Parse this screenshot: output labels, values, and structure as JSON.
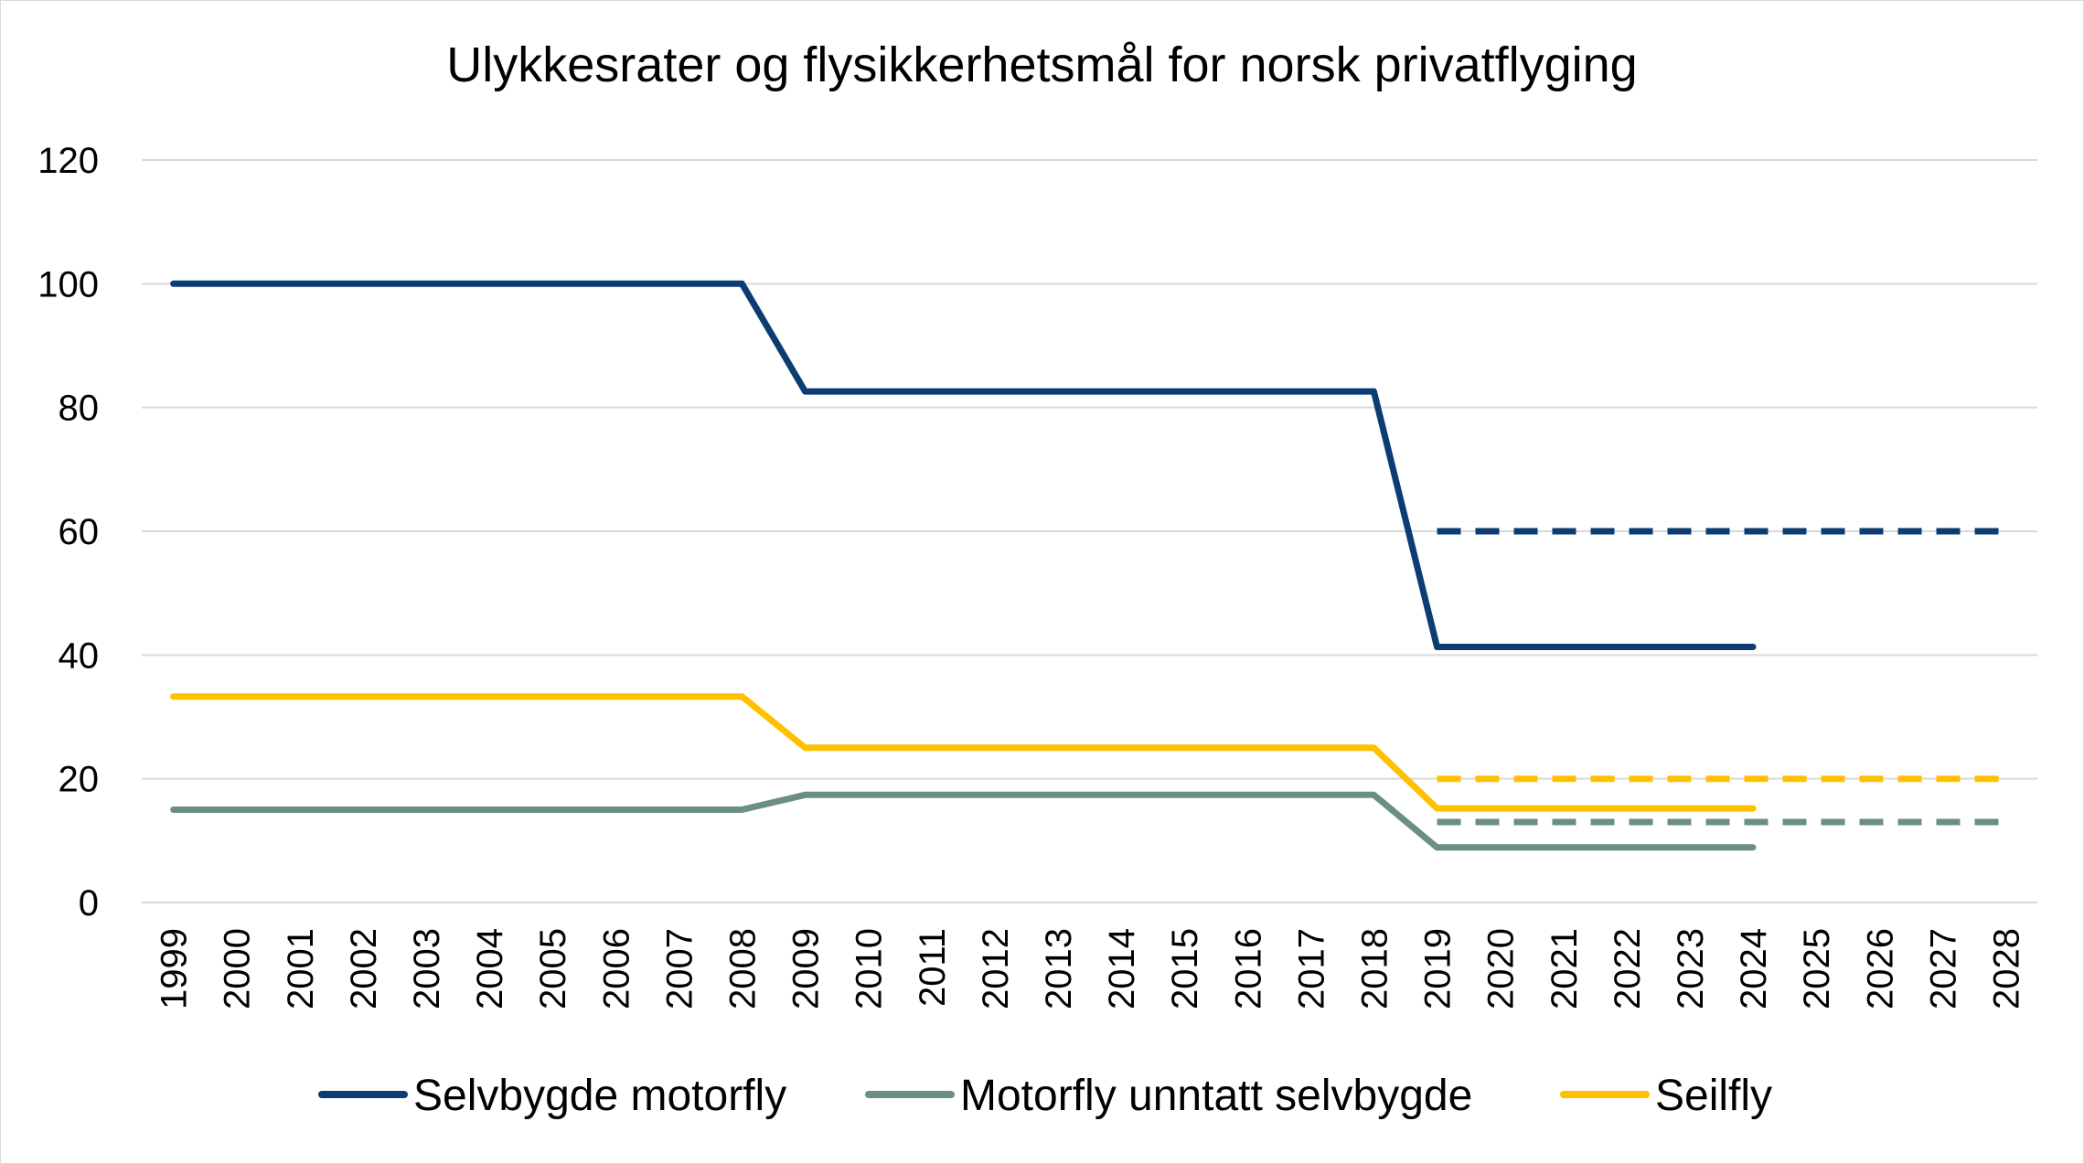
{
  "chart_data": {
    "type": "line",
    "title": "Ulykkesrater og flysikkerhetsmål for norsk privatflyging",
    "xlabel": "",
    "ylabel": "",
    "ylim": [
      0,
      120
    ],
    "yticks": [
      "0",
      "20",
      "40",
      "60",
      "80",
      "100",
      "120"
    ],
    "categories": [
      "1999",
      "2000",
      "2001",
      "2002",
      "2003",
      "2004",
      "2005",
      "2006",
      "2007",
      "2008",
      "2009",
      "2010",
      "2011",
      "2012",
      "2013",
      "2014",
      "2015",
      "2016",
      "2017",
      "2018",
      "2019",
      "2020",
      "2021",
      "2022",
      "2023",
      "2024",
      "2025",
      "2026",
      "2027",
      "2028"
    ],
    "grid": true,
    "legend_position": "bottom",
    "series": [
      {
        "name": "Selvbygde motorfly",
        "color": "#0b3d73",
        "style": "solid",
        "values": [
          100,
          100,
          100,
          100,
          100,
          100,
          100,
          100,
          100,
          100,
          82.6,
          82.6,
          82.6,
          82.6,
          82.6,
          82.6,
          82.6,
          82.6,
          82.6,
          82.6,
          41.3,
          41.3,
          41.3,
          41.3,
          41.3,
          41.3,
          null,
          null,
          null,
          null
        ]
      },
      {
        "name": "Motorfly unntatt selvbygde",
        "color": "#6b8f80",
        "style": "solid",
        "values": [
          15,
          15,
          15,
          15,
          15,
          15,
          15,
          15,
          15,
          15,
          17.4,
          17.4,
          17.4,
          17.4,
          17.4,
          17.4,
          17.4,
          17.4,
          17.4,
          17.4,
          8.9,
          8.9,
          8.9,
          8.9,
          8.9,
          8.9,
          null,
          null,
          null,
          null
        ]
      },
      {
        "name": "Seilfly",
        "color": "#ffc000",
        "style": "solid",
        "values": [
          33.3,
          33.3,
          33.3,
          33.3,
          33.3,
          33.3,
          33.3,
          33.3,
          33.3,
          33.3,
          25,
          25,
          25,
          25,
          25,
          25,
          25,
          25,
          25,
          25,
          15.2,
          15.2,
          15.2,
          15.2,
          15.2,
          15.2,
          null,
          null,
          null,
          null
        ]
      },
      {
        "color": "#0b3d73",
        "style": "dashed",
        "values": [
          null,
          null,
          null,
          null,
          null,
          null,
          null,
          null,
          null,
          null,
          null,
          null,
          null,
          null,
          null,
          null,
          null,
          null,
          null,
          null,
          60,
          60,
          60,
          60,
          60,
          60,
          60,
          60,
          60,
          60
        ]
      },
      {
        "color": "#ffc000",
        "style": "dashed",
        "values": [
          null,
          null,
          null,
          null,
          null,
          null,
          null,
          null,
          null,
          null,
          null,
          null,
          null,
          null,
          null,
          null,
          null,
          null,
          null,
          null,
          20,
          20,
          20,
          20,
          20,
          20,
          20,
          20,
          20,
          20
        ]
      },
      {
        "color": "#6b8f80",
        "style": "dashed",
        "values": [
          null,
          null,
          null,
          null,
          null,
          null,
          null,
          null,
          null,
          null,
          null,
          null,
          null,
          null,
          null,
          null,
          null,
          null,
          null,
          null,
          13,
          13,
          13,
          13,
          13,
          13,
          13,
          13,
          13,
          13
        ]
      }
    ],
    "legend": [
      {
        "label": "Selvbygde motorfly",
        "color": "#0b3d73"
      },
      {
        "label": "Motorfly unntatt selvbygde",
        "color": "#6b8f80"
      },
      {
        "label": "Seilfly",
        "color": "#ffc000"
      }
    ]
  }
}
